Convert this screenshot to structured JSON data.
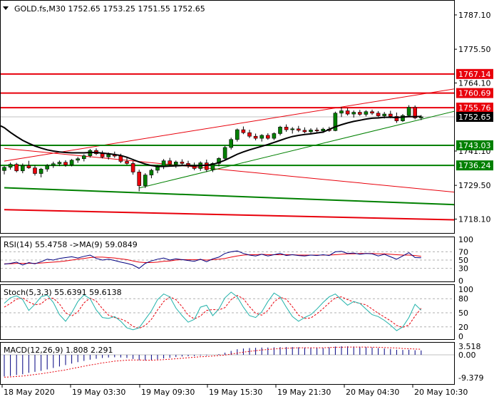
{
  "chart_data": {
    "type": "candlestick",
    "symbol_line": "GOLD.fs,M30  1752.65 1753.25 1751.55 1752.65",
    "price_axis_ticks": [
      "1787.10",
      "1775.50",
      "1764.10",
      "1741.10",
      "1729.50",
      "1718.10"
    ],
    "price_axis_tick_values": [
      1787.1,
      1775.5,
      1764.1,
      1741.1,
      1729.5,
      1718.1
    ],
    "price_ylim": [
      1713.4,
      1791.9
    ],
    "time_axis_ticks": [
      "18 May 2020",
      "19 May 03:30",
      "19 May 09:30",
      "19 May 15:30",
      "19 May 21:30",
      "20 May 04:30",
      "20 May 10:30"
    ],
    "level_labels": [
      {
        "text": "1767.14",
        "value": 1767.14,
        "color": "#e8000b"
      },
      {
        "text": "1760.69",
        "value": 1760.69,
        "color": "#e8000b"
      },
      {
        "text": "1755.76",
        "value": 1755.76,
        "color": "#e8000b"
      },
      {
        "text": "1752.65",
        "value": 1752.65,
        "color": "#000000"
      },
      {
        "text": "1743.03",
        "value": 1743.03,
        "color": "#008000"
      },
      {
        "text": "1736.24",
        "value": 1736.24,
        "color": "#008000"
      }
    ],
    "rsi": {
      "label": "RSI(14) 55.4758  ->MA(9) 59.0849",
      "ticks": [
        "100",
        "70",
        "50",
        "30",
        "0"
      ],
      "tick_values": [
        100,
        70,
        50,
        30,
        0
      ]
    },
    "stoch": {
      "label": "Stoch(5,3,3) 55.6391 59.6138",
      "ticks": [
        "100",
        "80",
        "50",
        "20",
        "0"
      ],
      "tick_values": [
        100,
        80,
        50,
        20,
        0
      ]
    },
    "macd": {
      "label": "MACD(12,26,9) 1.808 2.291",
      "ticks": [
        "3.518",
        "0.00",
        "-9.379"
      ],
      "tick_values": [
        3.518,
        0,
        -9.379
      ]
    },
    "candles": [
      [
        1734.5,
        1736.0,
        1733.2,
        1735.6
      ],
      [
        1735.6,
        1737.2,
        1734.8,
        1736.6
      ],
      [
        1736.6,
        1737.1,
        1733.9,
        1734.4
      ],
      [
        1734.4,
        1736.9,
        1733.6,
        1736.2
      ],
      [
        1736.2,
        1737.8,
        1735.1,
        1735.4
      ],
      [
        1735.4,
        1736.3,
        1732.8,
        1733.5
      ],
      [
        1733.5,
        1735.4,
        1732.2,
        1735.0
      ],
      [
        1735.0,
        1736.7,
        1734.1,
        1736.2
      ],
      [
        1736.2,
        1737.5,
        1735.4,
        1736.8
      ],
      [
        1736.8,
        1737.9,
        1736.0,
        1737.3
      ],
      [
        1737.3,
        1738.0,
        1735.8,
        1736.4
      ],
      [
        1736.4,
        1738.4,
        1735.9,
        1738.0
      ],
      [
        1738.0,
        1739.1,
        1737.1,
        1738.5
      ],
      [
        1738.5,
        1740.0,
        1737.6,
        1739.5
      ],
      [
        1739.5,
        1741.8,
        1738.9,
        1741.3
      ],
      [
        1741.3,
        1742.0,
        1739.7,
        1740.2
      ],
      [
        1740.2,
        1741.2,
        1738.6,
        1739.1
      ],
      [
        1739.1,
        1740.6,
        1738.2,
        1739.9
      ],
      [
        1739.9,
        1740.9,
        1738.8,
        1739.4
      ],
      [
        1739.4,
        1740.2,
        1737.0,
        1737.6
      ],
      [
        1737.6,
        1738.9,
        1736.4,
        1736.9
      ],
      [
        1736.9,
        1737.6,
        1733.1,
        1734.0
      ],
      [
        1734.0,
        1734.8,
        1727.5,
        1729.4
      ],
      [
        1729.4,
        1733.6,
        1728.6,
        1733.0
      ],
      [
        1733.0,
        1735.1,
        1731.9,
        1734.6
      ],
      [
        1734.6,
        1736.4,
        1733.6,
        1735.8
      ],
      [
        1735.8,
        1738.4,
        1735.0,
        1737.8
      ],
      [
        1737.8,
        1738.8,
        1736.1,
        1736.6
      ],
      [
        1736.6,
        1737.9,
        1735.4,
        1737.4
      ],
      [
        1737.4,
        1738.3,
        1736.2,
        1736.9
      ],
      [
        1736.9,
        1737.8,
        1735.3,
        1736.1
      ],
      [
        1736.1,
        1737.2,
        1734.6,
        1735.2
      ],
      [
        1735.2,
        1737.6,
        1734.4,
        1737.1
      ],
      [
        1737.1,
        1738.2,
        1734.0,
        1734.8
      ],
      [
        1734.8,
        1737.3,
        1734.0,
        1736.9
      ],
      [
        1736.9,
        1739.0,
        1735.9,
        1738.6
      ],
      [
        1738.6,
        1742.8,
        1738.0,
        1742.3
      ],
      [
        1742.3,
        1745.6,
        1741.6,
        1745.0
      ],
      [
        1745.0,
        1748.7,
        1744.3,
        1748.3
      ],
      [
        1748.3,
        1749.4,
        1746.8,
        1747.3
      ],
      [
        1747.3,
        1748.3,
        1745.5,
        1746.1
      ],
      [
        1746.1,
        1747.0,
        1744.7,
        1745.4
      ],
      [
        1745.4,
        1746.8,
        1744.3,
        1746.4
      ],
      [
        1746.4,
        1747.1,
        1744.9,
        1745.4
      ],
      [
        1745.4,
        1747.4,
        1744.8,
        1747.0
      ],
      [
        1747.0,
        1749.6,
        1746.4,
        1749.2
      ],
      [
        1749.2,
        1750.1,
        1747.6,
        1748.3
      ],
      [
        1748.3,
        1749.2,
        1747.0,
        1748.6
      ],
      [
        1748.6,
        1749.6,
        1747.5,
        1748.1
      ],
      [
        1748.1,
        1749.1,
        1747.1,
        1747.6
      ],
      [
        1747.6,
        1748.8,
        1746.7,
        1748.2
      ],
      [
        1748.2,
        1749.0,
        1747.3,
        1747.9
      ],
      [
        1747.9,
        1749.0,
        1747.2,
        1748.5
      ],
      [
        1748.5,
        1749.3,
        1747.6,
        1748.0
      ],
      [
        1748.0,
        1754.4,
        1747.8,
        1753.9
      ],
      [
        1753.9,
        1756.0,
        1752.6,
        1754.7
      ],
      [
        1754.7,
        1755.6,
        1753.1,
        1753.6
      ],
      [
        1753.6,
        1754.8,
        1752.4,
        1754.2
      ],
      [
        1754.2,
        1755.0,
        1753.0,
        1753.5
      ],
      [
        1753.5,
        1754.9,
        1752.8,
        1754.4
      ],
      [
        1754.4,
        1755.1,
        1753.3,
        1753.9
      ],
      [
        1753.9,
        1754.6,
        1752.6,
        1753.0
      ],
      [
        1753.0,
        1754.3,
        1752.1,
        1753.6
      ],
      [
        1753.6,
        1754.7,
        1752.2,
        1752.8
      ],
      [
        1752.8,
        1754.1,
        1750.6,
        1751.3
      ],
      [
        1751.3,
        1753.6,
        1750.9,
        1753.1
      ],
      [
        1753.1,
        1756.6,
        1752.6,
        1755.9
      ],
      [
        1755.9,
        1756.5,
        1751.8,
        1752.3
      ],
      [
        1752.3,
        1753.25,
        1751.55,
        1752.65
      ]
    ],
    "ma_line": [
      1749.0,
      1747.4,
      1746.0,
      1744.7,
      1743.7,
      1742.8,
      1742.1,
      1741.5,
      1741.1,
      1740.8,
      1740.6,
      1740.5,
      1740.5,
      1740.5,
      1740.6,
      1740.6,
      1740.4,
      1740.2,
      1739.9,
      1739.6,
      1739.0,
      1738.2,
      1737.4,
      1736.7,
      1736.2,
      1735.9,
      1735.9,
      1736.0,
      1736.1,
      1736.2,
      1736.2,
      1736.1,
      1736.2,
      1736.3,
      1736.6,
      1737.2,
      1738.0,
      1739.0,
      1740.0,
      1740.8,
      1741.5,
      1742.1,
      1742.7,
      1743.3,
      1744.0,
      1744.7,
      1745.4,
      1746.0,
      1746.4,
      1746.7,
      1746.9,
      1747.2,
      1747.5,
      1748.4,
      1749.3,
      1750.0,
      1750.6,
      1751.1,
      1751.5,
      1751.9,
      1752.2,
      1752.3,
      1752.5,
      1752.5,
      1752.4,
      1752.6,
      1752.7,
      1752.7,
      1752.8
    ],
    "levels": {
      "horizontal_red": [
        1767.14,
        1760.69,
        1755.76
      ],
      "horizontal_green": [
        1743.03,
        1736.24
      ],
      "horizontal_grey": 1752.65,
      "channel_red_upper": [
        [
          0,
          1737.7
        ],
        [
          68,
          1760.3
        ]
      ],
      "channel_red_lower": [
        [
          0,
          1742.0
        ],
        [
          68,
          1728.3
        ]
      ],
      "channel_green_upper": [
        [
          22,
          1728.6
        ],
        [
          68,
          1751.8
        ]
      ],
      "channel_green_lower": [
        [
          0,
          1728.7
        ],
        [
          68,
          1723.4
        ]
      ],
      "channel_red_bottom": [
        [
          0,
          1721.3
        ],
        [
          68,
          1718.1
        ]
      ]
    },
    "rsi_series": [
      40,
      42,
      45,
      38,
      44,
      41,
      46,
      52,
      50,
      54,
      56,
      58,
      55,
      59,
      62,
      54,
      50,
      52,
      49,
      45,
      42,
      38,
      30,
      42,
      48,
      52,
      55,
      50,
      53,
      51,
      49,
      47,
      52,
      46,
      53,
      57,
      66,
      70,
      72,
      66,
      62,
      60,
      64,
      60,
      63,
      66,
      61,
      63,
      61,
      60,
      62,
      61,
      63,
      61,
      70,
      71,
      66,
      67,
      64,
      66,
      65,
      60,
      64,
      58,
      52,
      60,
      68,
      56,
      55.5
    ],
    "rsi_ma_series": [
      41,
      41,
      42,
      42,
      42,
      42,
      43,
      44,
      45,
      46,
      48,
      50,
      52,
      54,
      56,
      57,
      57,
      56,
      55,
      53,
      51,
      48,
      45,
      44,
      44,
      45,
      47,
      48,
      50,
      51,
      51,
      51,
      51,
      50,
      51,
      52,
      54,
      57,
      60,
      62,
      63,
      63,
      64,
      63,
      63,
      63,
      63,
      63,
      62,
      62,
      62,
      62,
      62,
      62,
      63,
      64,
      65,
      65,
      66,
      66,
      66,
      65,
      65,
      64,
      63,
      62,
      62,
      61,
      59.1
    ],
    "stoch_k_series": [
      70,
      82,
      86,
      78,
      55,
      68,
      84,
      88,
      72,
      46,
      32,
      50,
      74,
      88,
      80,
      56,
      40,
      38,
      42,
      32,
      18,
      14,
      18,
      36,
      54,
      78,
      90,
      84,
      60,
      44,
      30,
      36,
      62,
      66,
      44,
      58,
      82,
      94,
      84,
      62,
      44,
      40,
      52,
      74,
      92,
      84,
      62,
      42,
      32,
      40,
      46,
      58,
      72,
      84,
      90,
      78,
      66,
      74,
      70,
      58,
      46,
      42,
      34,
      24,
      12,
      20,
      40,
      68,
      55.6
    ],
    "stoch_d_series": [
      62,
      70,
      79,
      82,
      73,
      67,
      69,
      80,
      81,
      69,
      50,
      43,
      52,
      71,
      81,
      75,
      59,
      45,
      40,
      37,
      31,
      21,
      17,
      23,
      36,
      56,
      74,
      84,
      78,
      63,
      45,
      37,
      43,
      55,
      57,
      56,
      61,
      78,
      87,
      80,
      63,
      49,
      45,
      55,
      73,
      83,
      79,
      63,
      45,
      38,
      39,
      48,
      59,
      71,
      82,
      84,
      78,
      73,
      70,
      67,
      58,
      49,
      41,
      33,
      23,
      19,
      24,
      43,
      59.6
    ],
    "macd_hist_series": [
      -8.9,
      -8.7,
      -8.3,
      -8.0,
      -7.4,
      -7.0,
      -6.6,
      -6.0,
      -5.4,
      -4.8,
      -4.2,
      -3.6,
      -3.0,
      -2.5,
      -2.0,
      -1.6,
      -1.3,
      -1.1,
      -1.0,
      -1.1,
      -1.3,
      -1.7,
      -2.2,
      -2.3,
      -2.2,
      -1.9,
      -1.5,
      -1.2,
      -0.9,
      -0.7,
      -0.6,
      -0.5,
      -0.3,
      -0.3,
      0.0,
      0.3,
      0.9,
      1.6,
      2.3,
      2.6,
      2.8,
      2.9,
      3.0,
      3.0,
      3.1,
      3.2,
      3.2,
      3.2,
      3.1,
      3.0,
      2.9,
      2.8,
      2.8,
      3.1,
      3.4,
      3.5,
      3.5,
      3.4,
      3.3,
      3.2,
      3.0,
      2.8,
      2.6,
      2.4,
      2.1,
      2.0,
      2.1,
      1.9,
      1.8
    ],
    "macd_signal_series": [
      -9.2,
      -9.1,
      -8.9,
      -8.7,
      -8.4,
      -8.1,
      -7.8,
      -7.4,
      -7.0,
      -6.6,
      -6.2,
      -5.7,
      -5.2,
      -4.7,
      -4.2,
      -3.8,
      -3.3,
      -3.0,
      -2.6,
      -2.4,
      -2.2,
      -2.1,
      -2.1,
      -2.2,
      -2.2,
      -2.1,
      -2.0,
      -1.8,
      -1.6,
      -1.4,
      -1.2,
      -1.0,
      -0.8,
      -0.7,
      -0.5,
      -0.3,
      -0.1,
      0.3,
      0.7,
      1.1,
      1.4,
      1.7,
      2.0,
      2.2,
      2.4,
      2.6,
      2.7,
      2.8,
      2.9,
      2.9,
      2.9,
      2.9,
      2.9,
      3.0,
      3.1,
      3.1,
      3.2,
      3.2,
      3.2,
      3.2,
      3.1,
      3.1,
      3.0,
      2.9,
      2.8,
      2.6,
      2.5,
      2.4,
      2.3
    ]
  }
}
